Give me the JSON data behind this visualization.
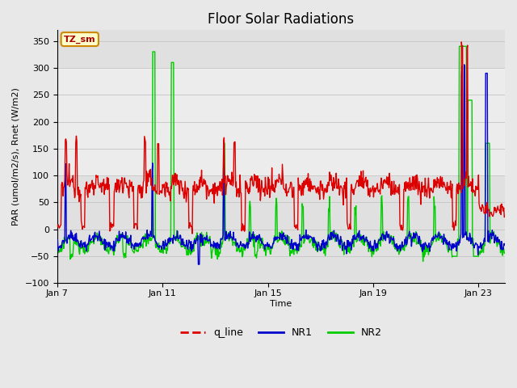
{
  "title": "Floor Solar Radiations",
  "xlabel": "Time",
  "ylabel": "PAR (umol/m2/s), Rnet (W/m2)",
  "ylim": [
    -100,
    370
  ],
  "yticks": [
    -100,
    -50,
    0,
    50,
    100,
    150,
    200,
    250,
    300,
    350
  ],
  "x_start_day": 7,
  "n_days": 17,
  "x_tick_days": [
    7,
    11,
    15,
    19,
    23
  ],
  "x_tick_labels": [
    "Jan 7",
    "Jan 11",
    "Jan 15",
    "Jan 19",
    "Jan 23"
  ],
  "bg_color": "#e8e8e8",
  "plot_bg_color": "#e0e0e0",
  "band_color": "#d0d0d0",
  "legend_labels": [
    "q_line",
    "NR1",
    "NR2"
  ],
  "legend_colors": [
    "#dd0000",
    "#0000cc",
    "#00cc00"
  ],
  "line_width": 1.0,
  "annotation_text": "TZ_sm",
  "annotation_box_color": "#ffffcc",
  "annotation_border_color": "#cc8800",
  "title_fontsize": 12,
  "axis_label_fontsize": 8,
  "tick_fontsize": 8,
  "grid_color": "#c8c8c8"
}
